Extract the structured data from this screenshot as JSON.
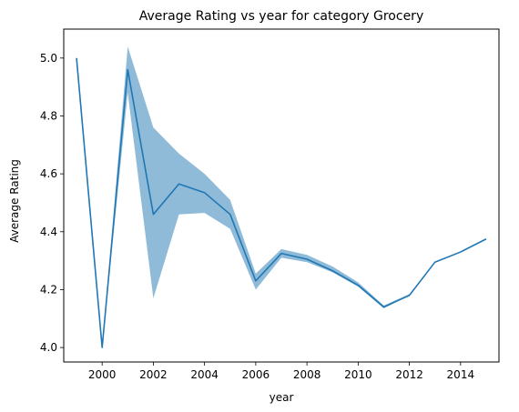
{
  "chart_data": {
    "type": "line",
    "title": "Average Rating vs year for category Grocery",
    "xlabel": "year",
    "ylabel": "Average Rating",
    "xlim": [
      1998.5,
      2015.5
    ],
    "ylim": [
      3.95,
      5.1
    ],
    "x_ticks": [
      2000,
      2002,
      2004,
      2006,
      2008,
      2010,
      2012,
      2014
    ],
    "y_ticks": [
      4.0,
      4.2,
      4.4,
      4.6,
      4.8,
      5.0
    ],
    "y_tick_labels": [
      "4.0",
      "4.2",
      "4.4",
      "4.6",
      "4.8",
      "5.0"
    ],
    "grid": false,
    "x": [
      1999,
      2000,
      2001,
      2002,
      2003,
      2004,
      2005,
      2006,
      2007,
      2008,
      2009,
      2010,
      2011,
      2012,
      2013,
      2014,
      2015
    ],
    "series": [
      {
        "values": [
          5.0,
          4.0,
          4.96,
          4.46,
          4.565,
          4.535,
          4.46,
          4.23,
          4.325,
          4.305,
          4.265,
          4.215,
          4.14,
          4.18,
          4.295,
          4.33,
          4.375
        ],
        "ci_lower": [
          5.0,
          4.0,
          4.88,
          4.17,
          4.46,
          4.465,
          4.41,
          4.2,
          4.31,
          4.295,
          4.26,
          4.21,
          4.135,
          4.18,
          4.295,
          4.33,
          4.375
        ],
        "ci_upper": [
          5.0,
          4.0,
          5.04,
          4.76,
          4.67,
          4.6,
          4.51,
          4.255,
          4.34,
          4.32,
          4.28,
          4.225,
          4.145,
          4.185,
          4.295,
          4.33,
          4.375
        ],
        "color": "#1f77b4",
        "band_color": "#1f77b4"
      }
    ]
  }
}
